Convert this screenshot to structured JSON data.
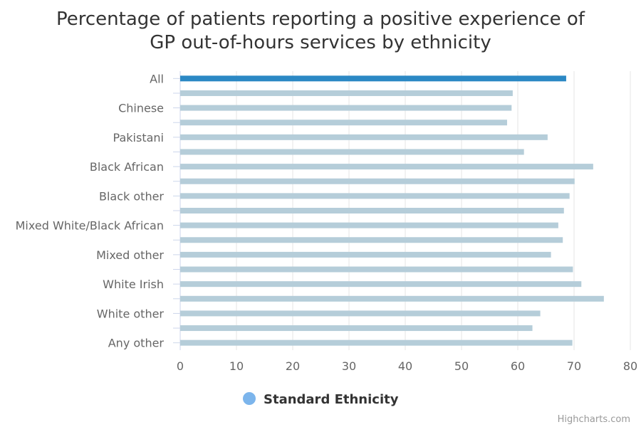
{
  "chart_data": {
    "type": "bar",
    "orientation": "horizontal",
    "title": "Percentage of patients reporting a positive experience of GP out-of-hours services by ethnicity",
    "title_lines": [
      "Percentage of patients reporting a positive experience of",
      "GP out-of-hours services by ethnicity"
    ],
    "categories": [
      "All",
      "",
      "Chinese",
      "",
      "Pakistani",
      "",
      "Black African",
      "",
      "Black other",
      "",
      "Mixed White/Black African",
      "",
      "Mixed other",
      "",
      "White Irish",
      "",
      "White other",
      "",
      "Any other"
    ],
    "values": [
      68.6,
      59.1,
      58.9,
      58.1,
      65.3,
      61.1,
      73.4,
      70.1,
      69.2,
      68.2,
      67.2,
      68.0,
      65.9,
      69.8,
      71.3,
      75.3,
      64.0,
      62.6,
      69.7
    ],
    "highlight_index": 0,
    "xlim": [
      0,
      80
    ],
    "x_ticks": [
      0,
      10,
      20,
      30,
      40,
      50,
      60,
      70,
      80
    ],
    "grid": true,
    "legend": {
      "position": "bottom",
      "entries": [
        "Standard Ethnicity"
      ]
    },
    "colors": {
      "highlight": "#2b88c4",
      "bar": "#b5cdd9",
      "legend_marker": "#7cb5ec",
      "grid": "#e6e6e6"
    }
  },
  "credit": "Highcharts.com"
}
